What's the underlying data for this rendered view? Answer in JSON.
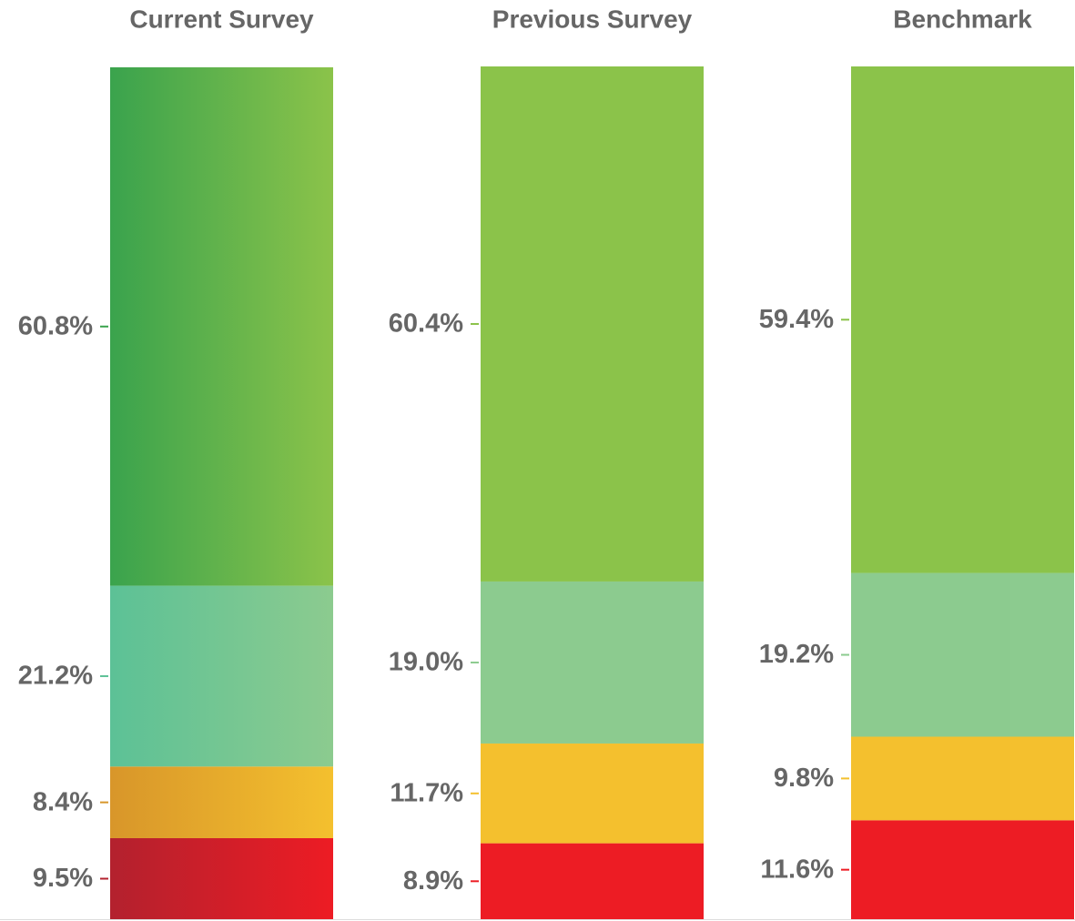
{
  "chart_data": {
    "type": "bar",
    "stacked": true,
    "categories": [
      "Current Survey",
      "Previous Survey",
      "Benchmark"
    ],
    "ylim": [
      0,
      100
    ],
    "series": [
      {
        "colors": [
          [
            "#b3212e",
            "#ed1c24"
          ],
          "#ed1c24",
          "#ed1c24"
        ],
        "values": [
          9.5,
          8.9,
          11.6
        ],
        "value_labels": [
          "9.5%",
          "8.9%",
          "11.6%"
        ]
      },
      {
        "colors": [
          [
            "#d8962a",
            "#f4c02e"
          ],
          "#f4c02e",
          "#f4c02e"
        ],
        "values": [
          8.4,
          11.7,
          9.8
        ],
        "value_labels": [
          "8.4%",
          "11.7%",
          "9.8%"
        ]
      },
      {
        "colors": [
          [
            "#5cc196",
            "#8ccb8f"
          ],
          "#8ccb8f",
          "#8ccb8f"
        ],
        "values": [
          21.2,
          19.0,
          19.2
        ],
        "value_labels": [
          "21.2%",
          "19.0%",
          "19.2%"
        ]
      },
      {
        "colors": [
          [
            "#3aa34d",
            "#8bc34a"
          ],
          "#8bc34a",
          "#8bc34a"
        ],
        "values": [
          60.8,
          60.4,
          59.4
        ],
        "value_labels": [
          "60.8%",
          "60.4%",
          "59.4%"
        ]
      }
    ]
  }
}
